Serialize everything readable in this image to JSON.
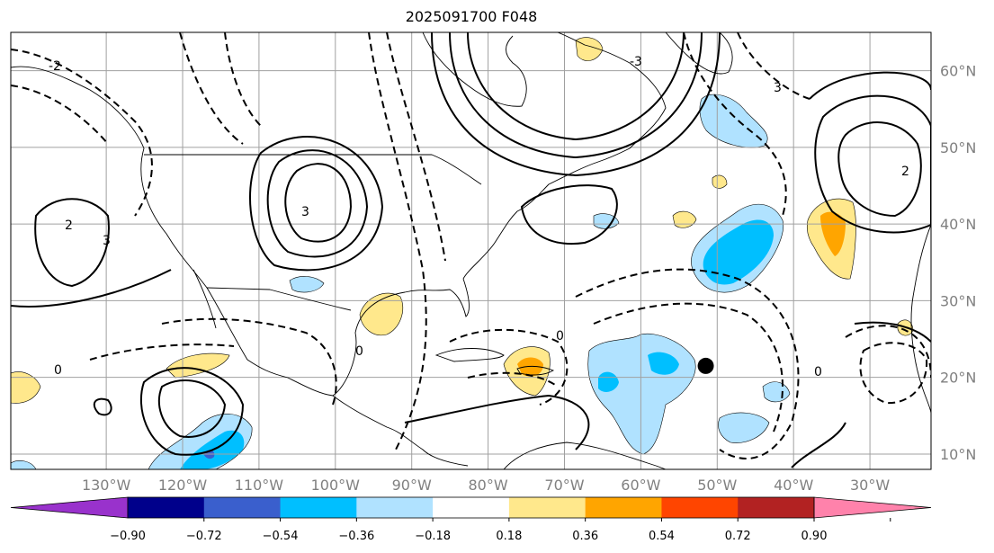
{
  "title": "2025091700 F048",
  "map": {
    "projection": "plate-carree",
    "extent": {
      "lon_min": -142.5,
      "lon_max": -22,
      "lat_min": 8.0,
      "lat_max": 65.0
    },
    "gridlines": true,
    "lon_ticks": [
      {
        "lon": -130,
        "label": "130°W"
      },
      {
        "lon": -120,
        "label": "120°W"
      },
      {
        "lon": -110,
        "label": "110°W"
      },
      {
        "lon": -100,
        "label": "100°W"
      },
      {
        "lon": -90,
        "label": "90°W"
      },
      {
        "lon": -80,
        "label": "80°W"
      },
      {
        "lon": -70,
        "label": "70°W"
      },
      {
        "lon": -60,
        "label": "60°W"
      },
      {
        "lon": -50,
        "label": "50°W"
      },
      {
        "lon": -40,
        "label": "40°W"
      },
      {
        "lon": -30,
        "label": "30°W"
      }
    ],
    "lat_ticks": [
      {
        "lat": 10,
        "label": "10°N"
      },
      {
        "lat": 20,
        "label": "20°N"
      },
      {
        "lat": 30,
        "label": "30°N"
      },
      {
        "lat": 40,
        "label": "40°N"
      },
      {
        "lat": 50,
        "label": "50°N"
      },
      {
        "lat": 60,
        "label": "60°N"
      }
    ],
    "storm_marker": {
      "lon": -51.5,
      "lat": 21.5,
      "color": "#000000"
    },
    "contour_labels": [
      "2",
      "3",
      "0",
      "-2",
      "-3"
    ],
    "colors": {
      "tick_label": "#808080",
      "land_outline": "#000000",
      "grid": "#a0a0a0"
    }
  },
  "colorbar": {
    "extend": "both",
    "colors": [
      "#9932cc",
      "#00008b",
      "#3a5fcd",
      "#00bfff",
      "#b0e2ff",
      "#ffffff",
      "#ffe88c",
      "#ffa500",
      "#ff4500",
      "#b22222",
      "#ff82ab"
    ],
    "tick_labels": [
      "−0.90",
      "−0.72",
      "−0.54",
      "−0.36",
      "−0.18",
      "0.18",
      "0.36",
      "0.54",
      "0.72",
      "0.90"
    ]
  }
}
